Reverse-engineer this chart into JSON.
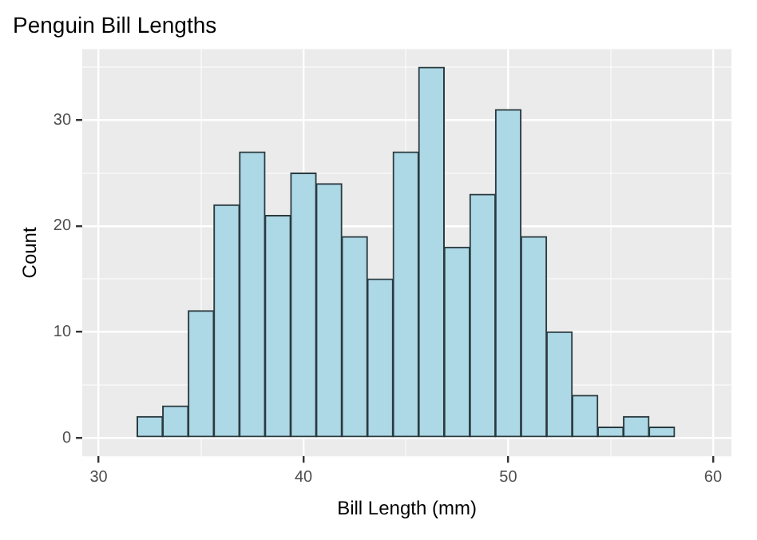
{
  "chart_data": {
    "type": "histogram",
    "title": "Penguin Bill Lengths",
    "xlabel": "Bill Length (mm)",
    "ylabel": "Count",
    "bins": [
      30.625,
      31.875,
      33.125,
      34.375,
      35.625,
      36.875,
      38.125,
      39.375,
      40.625,
      41.875,
      43.125,
      44.375,
      45.625,
      46.875,
      48.125,
      49.375,
      50.625,
      51.875,
      53.125,
      54.375,
      55.625,
      56.875,
      58.125,
      59.375
    ],
    "values": [
      0,
      2,
      3,
      12,
      22,
      27,
      21,
      25,
      24,
      19,
      15,
      27,
      35,
      18,
      23,
      31,
      19,
      10,
      4,
      1,
      2,
      1,
      0
    ],
    "color": "#add8e6",
    "xlim": [
      29.2,
      60.9
    ],
    "ylim": [
      -1.75,
      36.7
    ],
    "xticks": [
      30,
      {
        "value": 35,
        "label": null
      },
      40,
      {
        "value": 45,
        "label": null
      },
      50,
      {
        "value": 55,
        "label": null
      },
      60
    ],
    "yticks": [
      0,
      {
        "value": 5,
        "label": null
      },
      10,
      {
        "value": 15,
        "label": null
      },
      20,
      {
        "value": 25,
        "label": null
      },
      30,
      {
        "value": 35,
        "label": null
      }
    ],
    "grid": true,
    "legend": false
  }
}
